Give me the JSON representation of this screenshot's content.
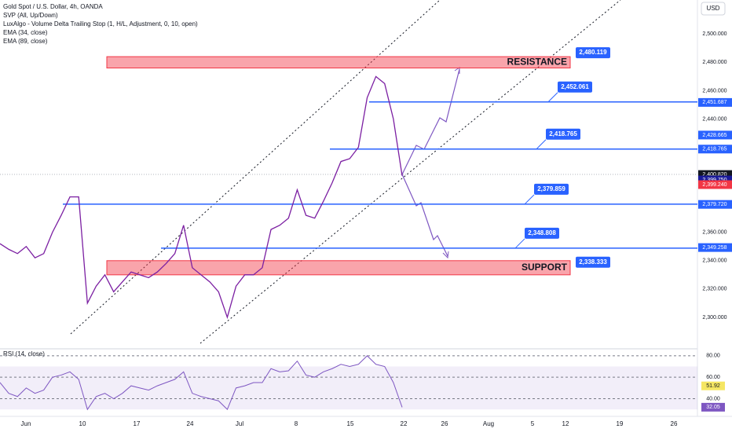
{
  "legend": {
    "symbol": "Gold Spot / U.S. Dollar, 4h, OANDA",
    "indicators": [
      "SVP (All, Up/Down)",
      "LuxAlgo - Volume Delta Trailing Stop (1, H/L, Adjustment, 0, 10, open)",
      "EMA (34, close)",
      "EMA (89, close)"
    ]
  },
  "currency": "USD",
  "price_pane": {
    "ylim": [
      2280,
      2524
    ],
    "ticks": [
      {
        "value": 2500,
        "label": "2,500.000"
      },
      {
        "value": 2480,
        "label": "2,480.000"
      },
      {
        "value": 2460,
        "label": "2,460.000"
      },
      {
        "value": 2440,
        "label": "2,440.000"
      },
      {
        "value": 2360,
        "label": "2,360.000"
      },
      {
        "value": 2340,
        "label": "2,340.000"
      },
      {
        "value": 2320,
        "label": "2,320.000"
      },
      {
        "value": 2300,
        "label": "2,300.000"
      }
    ],
    "axis_badges": [
      {
        "value": 2451.687,
        "label": "2,451.687",
        "color": "#2962ff"
      },
      {
        "value": 2428.665,
        "label": "2,428.665",
        "color": "#2962ff"
      },
      {
        "value": 2418.765,
        "label": "2,418.765",
        "color": "#2962ff"
      },
      {
        "value": 2400.82,
        "label": "2,400.820",
        "color": "#131722"
      },
      {
        "value": 2399.75,
        "label": "2,399.750",
        "color": "#1a1a9a"
      },
      {
        "value": 2399.24,
        "label": "2,399.240",
        "color": "#f23645"
      },
      {
        "value": 2379.72,
        "label": "2,379.720",
        "color": "#2962ff"
      },
      {
        "value": 2349.258,
        "label": "2,349.258",
        "color": "#2962ff"
      }
    ],
    "levels": [
      {
        "value": 2452.061,
        "label": "2,452.061"
      },
      {
        "value": 2418.765,
        "label": "2,418.765"
      },
      {
        "value": 2379.859,
        "label": "2,379.859"
      },
      {
        "value": 2348.808,
        "label": "2,348.808"
      }
    ],
    "zones": [
      {
        "name": "RESISTANCE",
        "low": 2476,
        "high": 2484,
        "edge": 2480.119,
        "edge_label": "2,480.119"
      },
      {
        "name": "SUPPORT",
        "low": 2330,
        "high": 2340,
        "edge": 2338.333,
        "edge_label": "2,338.333"
      }
    ],
    "closes": [
      2352,
      2348,
      2345,
      2350,
      2342,
      2345,
      2360,
      2372,
      2385,
      2385,
      2310,
      2322,
      2330,
      2318,
      2325,
      2332,
      2330,
      2328,
      2332,
      2338,
      2345,
      2365,
      2335,
      2330,
      2325,
      2318,
      2300,
      2322,
      2330,
      2330,
      2335,
      2362,
      2365,
      2370,
      2390,
      2372,
      2370,
      2382,
      2395,
      2410,
      2412,
      2420,
      2455,
      2470,
      2465,
      2440,
      2400
    ]
  },
  "rsi_pane": {
    "title": "RSI (14, close)",
    "ylim": [
      25,
      85
    ],
    "ticks": [
      {
        "value": 80,
        "label": "80.00"
      },
      {
        "value": 60,
        "label": "60.00"
      },
      {
        "value": 40,
        "label": "40.00"
      }
    ],
    "badges": [
      {
        "value": 51.92,
        "label": "51.92",
        "color": "#f5e663"
      },
      {
        "value": 32.05,
        "label": "32.05",
        "color": "#7e57c2"
      }
    ],
    "values": [
      55,
      45,
      42,
      50,
      45,
      48,
      60,
      62,
      65,
      58,
      30,
      42,
      45,
      40,
      45,
      52,
      50,
      48,
      52,
      55,
      58,
      65,
      45,
      42,
      40,
      38,
      30,
      50,
      52,
      55,
      55,
      68,
      65,
      66,
      75,
      62,
      60,
      65,
      68,
      72,
      70,
      72,
      80,
      72,
      70,
      55,
      32
    ]
  },
  "dates": [
    "Jun",
    "10",
    "17",
    "24",
    "Jul",
    "8",
    "15",
    "22",
    "26",
    "Aug",
    "5",
    "12",
    "19",
    "26"
  ]
}
